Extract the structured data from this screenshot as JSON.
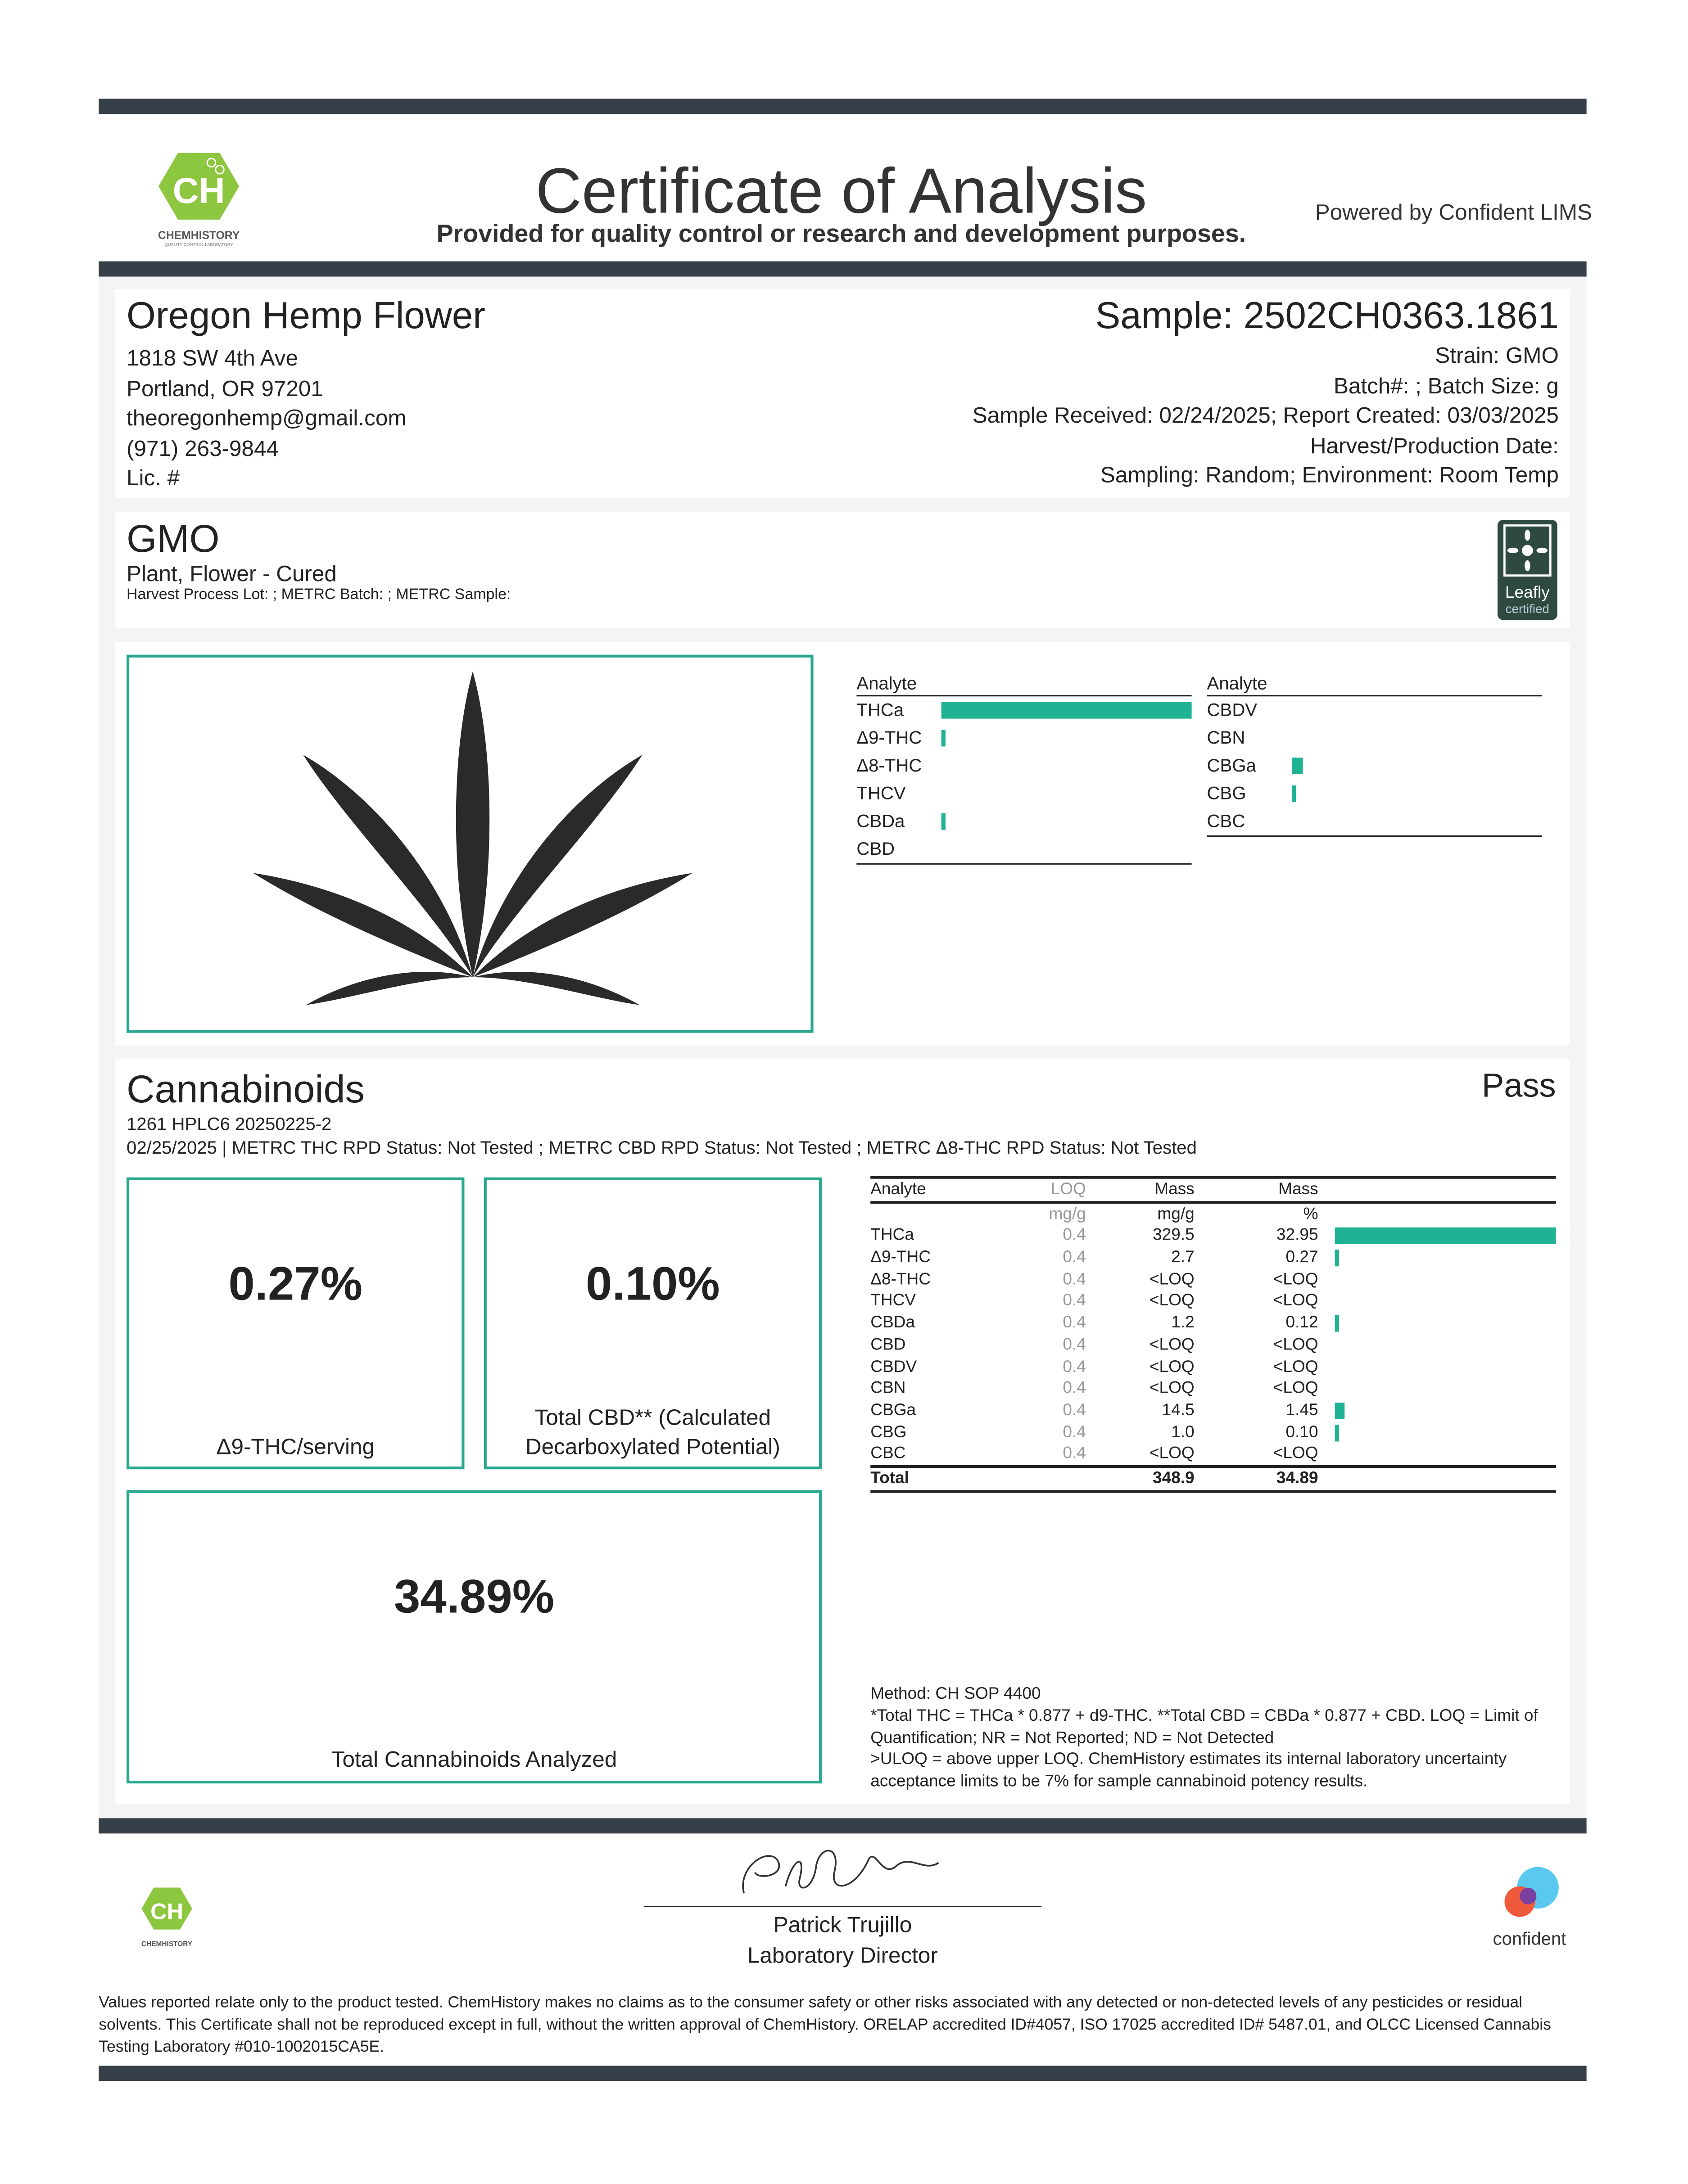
{
  "header": {
    "title": "Certificate of Analysis",
    "subtitle": "Provided for quality control or research and development purposes.",
    "powered_by": "Powered by Confident LIMS",
    "logo_text": "CHEMHISTORY",
    "logo_sub": "QUALITY CONTROL LABORATORY",
    "logo_mark": "CH"
  },
  "client": {
    "name": "Oregon Hemp Flower",
    "address1": "1818 SW 4th Ave",
    "address2": "Portland, OR 97201",
    "email": "theoregonhemp@gmail.com",
    "phone": "(971) 263-9844",
    "license": "Lic. #"
  },
  "sample": {
    "id": "Sample: 2502CH0363.1861",
    "strain": "Strain: GMO",
    "batch": "Batch#: ; Batch Size:  g",
    "dates": "Sample Received: 02/24/2025; Report Created: 03/03/2025",
    "harvest": "Harvest/Production Date: ",
    "sampling": "Sampling: Random; Environment: Room Temp"
  },
  "product": {
    "name": "GMO",
    "type": "Plant, Flower - Cured",
    "lots": "Harvest Process Lot: ; METRC Batch: ; METRC Sample:",
    "badge": "Leafly",
    "badge_sub": "certified"
  },
  "summary": {
    "left_header": "Analyte",
    "right_header": "Analyte",
    "left": [
      {
        "name": "THCa",
        "pct": 32.95
      },
      {
        "name": "Δ9-THC",
        "pct": 0.27
      },
      {
        "name": "Δ8-THC",
        "pct": 0
      },
      {
        "name": "THCV",
        "pct": 0
      },
      {
        "name": "CBDa",
        "pct": 0.12
      },
      {
        "name": "CBD",
        "pct": 0
      }
    ],
    "right": [
      {
        "name": "CBDV",
        "pct": 0
      },
      {
        "name": "CBN",
        "pct": 0
      },
      {
        "name": "CBGa",
        "pct": 1.45
      },
      {
        "name": "CBG",
        "pct": 0.1
      },
      {
        "name": "CBC",
        "pct": 0
      }
    ]
  },
  "cannabinoids": {
    "title": "Cannabinoids",
    "status": "Pass",
    "batch": "1261 HPLC6 20250225-2",
    "rpd": "02/25/2025 | METRC THC RPD Status: Not Tested ; METRC CBD RPD Status: Not Tested ; METRC Δ8-THC RPD Status: Not Tested",
    "thc_value": "0.27%",
    "thc_label": "Δ9-THC/serving",
    "cbd_value": "0.10%",
    "cbd_label": "Total CBD** (Calculated Decarboxylated Potential)",
    "total_value": "34.89%",
    "total_label": "Total Cannabinoids Analyzed",
    "table": {
      "headers": [
        "Analyte",
        "LOQ",
        "Mass",
        "Mass"
      ],
      "units": [
        "",
        "mg/g",
        "mg/g",
        "%"
      ],
      "rows": [
        [
          "THCa",
          "0.4",
          "329.5",
          "32.95"
        ],
        [
          "Δ9-THC",
          "0.4",
          "2.7",
          "0.27"
        ],
        [
          "Δ8-THC",
          "0.4",
          "<LOQ",
          "<LOQ"
        ],
        [
          "THCV",
          "0.4",
          "<LOQ",
          "<LOQ"
        ],
        [
          "CBDa",
          "0.4",
          "1.2",
          "0.12"
        ],
        [
          "CBD",
          "0.4",
          "<LOQ",
          "<LOQ"
        ],
        [
          "CBDV",
          "0.4",
          "<LOQ",
          "<LOQ"
        ],
        [
          "CBN",
          "0.4",
          "<LOQ",
          "<LOQ"
        ],
        [
          "CBGa",
          "0.4",
          "14.5",
          "1.45"
        ],
        [
          "CBG",
          "0.4",
          "1.0",
          "0.10"
        ],
        [
          "CBC",
          "0.4",
          "<LOQ",
          "<LOQ"
        ]
      ],
      "total": [
        "Total",
        "",
        "348.9",
        "34.89"
      ]
    },
    "method": "Method: CH SOP 4400",
    "notes": "*Total THC = THCa * 0.877 + d9-THC. **Total CBD = CBDa * 0.877 + CBD. LOQ = Limit of Quantification; NR = Not Reported; ND = Not Detected",
    "notes2": ">ULOQ = above upper LOQ. ChemHistory estimates its internal laboratory uncertainty acceptance limits to be 7% for sample cannabinoid potency results."
  },
  "signature": {
    "name": "Patrick Trujillo",
    "title": "Laboratory Director"
  },
  "footer": {
    "confident": "confident",
    "disclaimer": "Values reported relate only to the product tested. ChemHistory makes no claims as to the consumer safety or other risks associated with any detected or non-detected levels of any pesticides or residual solvents. This Certificate shall not be reproduced except in full, without the written approval of ChemHistory.  ORELAP accredited ID#4057, ISO 17025 accredited ID# 5487.01, and OLCC Licensed Cannabis Testing Laboratory #010-1002015CA5E."
  },
  "colors": {
    "bar": "#363f48",
    "accent": "#1fb394",
    "frame": "#2aa88f",
    "logo": "#8dc63f"
  }
}
